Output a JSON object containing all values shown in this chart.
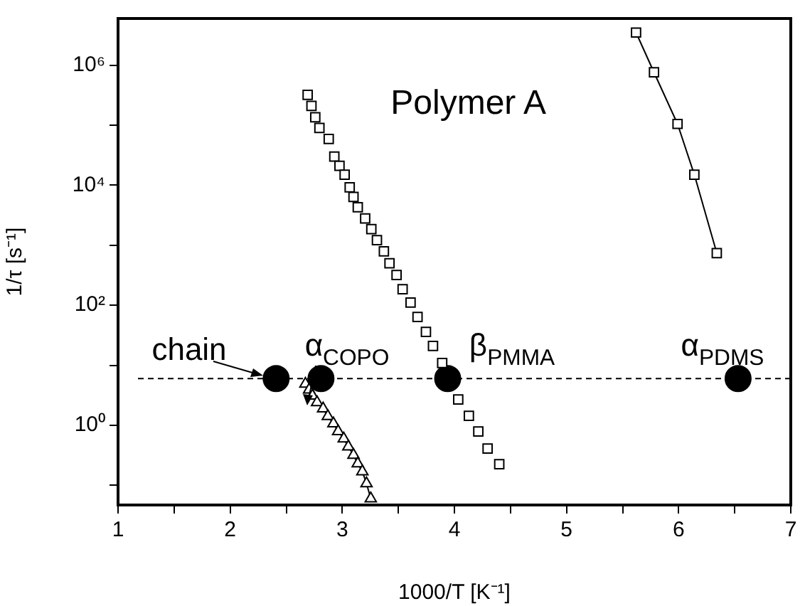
{
  "chart_data": {
    "type": "scatter",
    "xlabel": "1000/T [K⁻¹]",
    "ylabel": "1/τ [s⁻¹]",
    "log": "y",
    "grid": false,
    "legend": false,
    "xlim": [
      1,
      7
    ],
    "xticks": [
      1,
      {
        "value": 1.5,
        "label": null
      },
      2,
      {
        "value": 2.5,
        "label": null
      },
      3,
      {
        "value": 3.5,
        "label": null
      },
      4,
      {
        "value": 4.5,
        "label": null
      },
      5,
      {
        "value": 5.5,
        "label": null
      },
      6,
      {
        "value": 6.5,
        "label": null
      },
      7
    ],
    "ylim": [
      0.047,
      6000000
    ],
    "yticks": [
      {
        "value": 0.1,
        "label": null
      },
      {
        "value": 1,
        "label": "10⁰"
      },
      {
        "value": 10,
        "label": null
      },
      {
        "value": 100,
        "label": "10²"
      },
      {
        "value": 1000,
        "label": null
      },
      {
        "value": 10000,
        "label": "10⁴"
      },
      {
        "value": 100000,
        "label": null
      },
      {
        "value": 1000000,
        "label": "10⁶"
      }
    ],
    "series": [
      {
        "type": "scatter",
        "marker": "square",
        "color": "#000000",
        "x": [
          2.691,
          2.725,
          2.759,
          2.796,
          2.879,
          2.929,
          2.975,
          3.021,
          3.066,
          3.1,
          3.138,
          3.204,
          3.259,
          3.309,
          3.371,
          3.421,
          3.484,
          3.538,
          3.609,
          3.671,
          3.746,
          3.809,
          3.891,
          4.034,
          4.129,
          4.213,
          4.296,
          4.4
        ],
        "values": [
          320000,
          210000,
          136000,
          90000,
          59000,
          30000,
          21000,
          15000,
          9200,
          6400,
          4300,
          2800,
          1860,
          1220,
          790,
          500,
          320,
          185,
          111,
          64,
          36,
          21,
          10.9,
          2.7,
          1.44,
          0.79,
          0.41,
          0.225
        ]
      },
      {
        "type": "line",
        "marker": "square",
        "line_style": "solid",
        "color": "#000000",
        "x": [
          5.62,
          5.78,
          5.99,
          6.14,
          6.34
        ],
        "values": [
          3500000,
          760000,
          105000,
          15000,
          740
        ]
      },
      {
        "type": "line",
        "marker": "triangle",
        "line_style": "solid",
        "color": "#000000",
        "x": [
          2.671,
          2.704,
          2.734,
          2.775,
          2.829,
          2.871,
          2.921,
          2.963,
          3.013,
          3.054,
          3.1,
          3.138,
          3.179,
          3.216,
          3.254
        ],
        "values": [
          4.9,
          3.9,
          3.1,
          2.4,
          1.9,
          1.41,
          1.07,
          0.79,
          0.6,
          0.44,
          0.32,
          0.23,
          0.17,
          0.107,
          0.06
        ]
      },
      {
        "type": "scatter",
        "marker": "circle",
        "color": "#000000",
        "x": [
          2.41,
          2.81,
          3.94,
          6.53
        ],
        "values": [
          6,
          6,
          6,
          6
        ]
      }
    ],
    "ref_lines": [
      {
        "axis": "y",
        "value": 6,
        "line_style": "dashed",
        "color": "#000000"
      }
    ],
    "annotations": [
      "Polymer A",
      "chain",
      "α$_{COPO}$",
      "β$_{PMMA}$",
      "α$_{PDMS}$"
    ]
  }
}
